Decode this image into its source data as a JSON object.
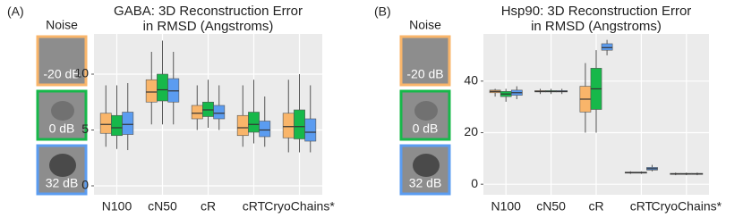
{
  "chart_data": [
    {
      "type": "box",
      "panel_label": "(A)",
      "title": [
        "GABA: 3D Reconstruction Error",
        "in RMSD (Angstroms)"
      ],
      "legend_title": "Noise",
      "categories": [
        "N100",
        "cN50",
        "cR",
        "cRT",
        "CryoChains*"
      ],
      "ylim": [
        -0.8,
        13.6
      ],
      "yticks": [
        0,
        5,
        10
      ],
      "grid": true,
      "series": [
        {
          "name": "-20 dB",
          "color": "#f9b56a",
          "values": [
            {
              "whislo": 3.5,
              "q1": 4.7,
              "med": 5.5,
              "q3": 6.5,
              "whishi": 9.0
            },
            {
              "whislo": 5.5,
              "q1": 7.5,
              "med": 8.4,
              "q3": 9.5,
              "whishi": 12.0
            },
            {
              "whislo": 5.0,
              "q1": 6.0,
              "med": 6.5,
              "q3": 7.2,
              "whishi": 9.0
            },
            {
              "whislo": 3.5,
              "q1": 4.5,
              "med": 5.2,
              "q3": 6.3,
              "whishi": 9.0
            },
            {
              "whislo": 3.0,
              "q1": 4.3,
              "med": 5.3,
              "q3": 6.5,
              "whishi": 9.5
            }
          ]
        },
        {
          "name": "0 dB",
          "color": "#17b84a",
          "values": [
            {
              "whislo": 3.3,
              "q1": 4.5,
              "med": 5.2,
              "q3": 6.3,
              "whishi": 9.0
            },
            {
              "whislo": 5.5,
              "q1": 7.6,
              "med": 8.6,
              "q3": 10.0,
              "whishi": 13.0
            },
            {
              "whislo": 5.2,
              "q1": 6.2,
              "med": 6.8,
              "q3": 7.5,
              "whishi": 9.5
            },
            {
              "whislo": 3.8,
              "q1": 4.8,
              "med": 5.5,
              "q3": 6.6,
              "whishi": 9.5
            },
            {
              "whislo": 3.0,
              "q1": 4.2,
              "med": 5.3,
              "q3": 6.8,
              "whishi": 10.0
            }
          ]
        },
        {
          "name": "32 dB",
          "color": "#5b9cf0",
          "values": [
            {
              "whislo": 3.2,
              "q1": 4.6,
              "med": 5.5,
              "q3": 6.6,
              "whishi": 9.2
            },
            {
              "whislo": 5.5,
              "q1": 7.5,
              "med": 8.5,
              "q3": 9.6,
              "whishi": 12.0
            },
            {
              "whislo": 5.0,
              "q1": 6.0,
              "med": 6.5,
              "q3": 7.2,
              "whishi": 9.0
            },
            {
              "whislo": 3.5,
              "q1": 4.4,
              "med": 5.0,
              "q3": 5.8,
              "whishi": 8.0
            },
            {
              "whislo": 3.0,
              "q1": 4.0,
              "med": 4.8,
              "q3": 6.0,
              "whishi": 9.0
            }
          ]
        }
      ]
    },
    {
      "type": "box",
      "panel_label": "(B)",
      "title": [
        "Hsp90: 3D Reconstruction Error",
        "in RMSD (Angstroms)"
      ],
      "legend_title": "Noise",
      "categories": [
        "N100",
        "cN50",
        "cR",
        "cRT",
        "CryoChains*"
      ],
      "ylim": [
        -4.1,
        58.3
      ],
      "yticks": [
        0,
        20,
        40
      ],
      "grid": true,
      "series": [
        {
          "name": "-20 dB",
          "color": "#f9b56a",
          "values": [
            {
              "whislo": 34,
              "q1": 35.5,
              "med": 36,
              "q3": 36.5,
              "whishi": 37
            },
            {
              "whislo": 35,
              "q1": 35.8,
              "med": 36,
              "q3": 36.3,
              "whishi": 37
            },
            {
              "whislo": 20,
              "q1": 28,
              "med": 33,
              "q3": 38,
              "whishi": 47
            },
            {
              "whislo": 4,
              "q1": 4.3,
              "med": 4.5,
              "q3": 4.7,
              "whishi": 5
            },
            {
              "whislo": 3.5,
              "q1": 3.8,
              "med": 4,
              "q3": 4.2,
              "whishi": 4.5
            }
          ]
        },
        {
          "name": "0 dB",
          "color": "#17b84a",
          "values": [
            {
              "whislo": 32,
              "q1": 34,
              "med": 35,
              "q3": 36,
              "whishi": 37
            },
            {
              "whislo": 35,
              "q1": 35.8,
              "med": 36,
              "q3": 36.3,
              "whishi": 37
            },
            {
              "whislo": 20,
              "q1": 29,
              "med": 37,
              "q3": 45,
              "whishi": 52
            },
            {
              "whislo": 4,
              "q1": 4.3,
              "med": 4.5,
              "q3": 4.7,
              "whishi": 5
            },
            {
              "whislo": 3.5,
              "q1": 3.8,
              "med": 4,
              "q3": 4.2,
              "whishi": 4.5
            }
          ]
        },
        {
          "name": "32 dB",
          "color": "#5b9cf0",
          "values": [
            {
              "whislo": 33,
              "q1": 34.5,
              "med": 35.5,
              "q3": 36.5,
              "whishi": 38
            },
            {
              "whislo": 35,
              "q1": 35.8,
              "med": 36,
              "q3": 36.3,
              "whishi": 37
            },
            {
              "whislo": 50,
              "q1": 52,
              "med": 53,
              "q3": 54.5,
              "whishi": 56
            },
            {
              "whislo": 5,
              "q1": 5.5,
              "med": 6,
              "q3": 6.5,
              "whishi": 7.5
            },
            {
              "whislo": 3.5,
              "q1": 3.8,
              "med": 4,
              "q3": 4.2,
              "whishi": 4.5
            }
          ]
        }
      ]
    }
  ]
}
